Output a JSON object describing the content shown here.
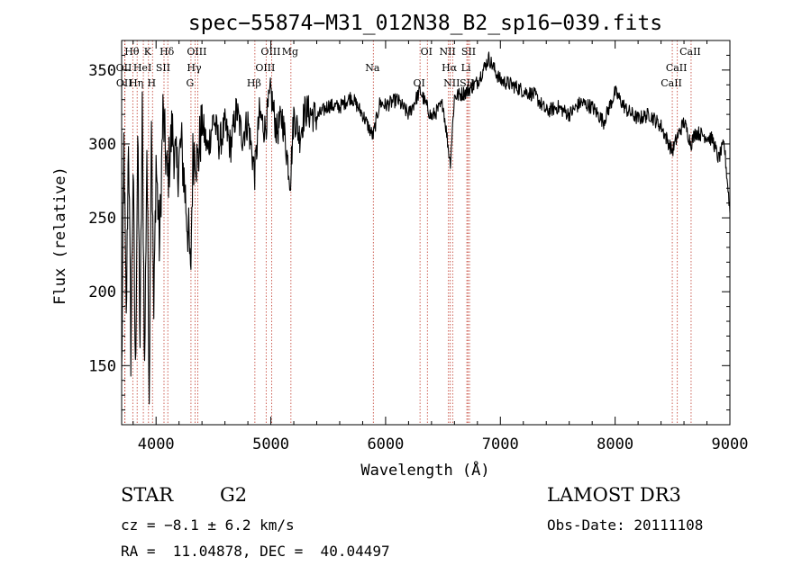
{
  "chart_data": {
    "type": "line",
    "title": "spec−55874−M31_012N38_B2_sp16−039.fits",
    "xlabel": "Wavelength (Å)",
    "ylabel": "Flux (relative)",
    "xlim": [
      3700,
      9000
    ],
    "ylim": [
      110,
      370
    ],
    "x_ticks": [
      4000,
      5000,
      6000,
      7000,
      8000,
      9000
    ],
    "x_tick_labels": [
      "4000",
      "5000",
      "6000",
      "7000",
      "8000",
      "9000"
    ],
    "y_ticks": [
      150,
      200,
      250,
      300,
      350
    ],
    "y_tick_labels": [
      "150",
      "200",
      "250",
      "300",
      "350"
    ],
    "series": [
      {
        "name": "flux",
        "x": [
          3700,
          3720,
          3740,
          3760,
          3780,
          3800,
          3820,
          3840,
          3860,
          3880,
          3900,
          3920,
          3940,
          3960,
          3980,
          4000,
          4030,
          4060,
          4100,
          4140,
          4180,
          4220,
          4260,
          4290,
          4300,
          4310,
          4320,
          4340,
          4360,
          4400,
          4450,
          4500,
          4550,
          4600,
          4650,
          4700,
          4750,
          4800,
          4860,
          4900,
          4950,
          5000,
          5050,
          5100,
          5170,
          5200,
          5250,
          5300,
          5400,
          5500,
          5600,
          5700,
          5800,
          5890,
          5950,
          6000,
          6100,
          6200,
          6300,
          6400,
          6500,
          6563,
          6600,
          6700,
          6800,
          6850,
          6900,
          6950,
          7000,
          7100,
          7200,
          7300,
          7400,
          7500,
          7600,
          7700,
          7800,
          7900,
          8000,
          8100,
          8200,
          8300,
          8400,
          8498,
          8542,
          8600,
          8662,
          8700,
          8800,
          8850,
          8900,
          8950,
          9000
        ],
        "values": [
          140,
          300,
          175,
          310,
          160,
          285,
          140,
          305,
          165,
          320,
          145,
          300,
          135,
          325,
          180,
          290,
          230,
          320,
          275,
          310,
          280,
          300,
          260,
          230,
          205,
          250,
          290,
          300,
          285,
          315,
          295,
          318,
          300,
          312,
          298,
          323,
          305,
          315,
          280,
          320,
          310,
          335,
          308,
          318,
          275,
          320,
          305,
          323,
          318,
          326,
          325,
          332,
          320,
          305,
          328,
          326,
          330,
          320,
          336,
          318,
          327,
          287,
          332,
          335,
          342,
          350,
          358,
          350,
          343,
          340,
          336,
          333,
          322,
          325,
          320,
          328,
          325,
          315,
          335,
          323,
          317,
          320,
          312,
          295,
          305,
          315,
          300,
          308,
          305,
          303,
          290,
          300,
          255
        ]
      }
    ],
    "line_marks": [
      {
        "label": "Hθ",
        "x": 3797
      },
      {
        "label": "OII",
        "x": 3727
      },
      {
        "label": "OII",
        "x": 3729
      },
      {
        "label": "K",
        "x": 3934
      },
      {
        "label": "HeI",
        "x": 3889
      },
      {
        "label": "Hη",
        "x": 3835
      },
      {
        "label": "Hδ",
        "x": 4102
      },
      {
        "label": "SII",
        "x": 4069
      },
      {
        "label": "H",
        "x": 3969
      },
      {
        "label": "OIII",
        "x": 4363
      },
      {
        "label": "Hγ",
        "x": 4340
      },
      {
        "label": "G",
        "x": 4304
      },
      {
        "label": "OIII",
        "x": 5007
      },
      {
        "label": "OIII",
        "x": 4959
      },
      {
        "label": "Hβ",
        "x": 4861
      },
      {
        "label": "Mg",
        "x": 5175
      },
      {
        "label": "Na",
        "x": 5893
      },
      {
        "label": "OI",
        "x": 6300
      },
      {
        "label": "OI",
        "x": 6364
      },
      {
        "label": "Hα",
        "x": 6563
      },
      {
        "label": "SII",
        "x": 6717
      },
      {
        "label": "NII",
        "x": 6548
      },
      {
        "label": "Li",
        "x": 6708
      },
      {
        "label": "NII",
        "x": 6584
      },
      {
        "label": "SII",
        "x": 6731
      },
      {
        "label": "CaII",
        "x": 8542
      },
      {
        "label": "CaII",
        "x": 8498
      },
      {
        "label": "CaII",
        "x": 8662
      }
    ]
  },
  "info": {
    "object_class": "STAR",
    "subclass": "G2",
    "survey": "LAMOST DR3",
    "redshift": "cz = −8.1 ± 6.2 km/s",
    "obs_date": "Obs-Date: 20111108",
    "coords": "RA =  11.04878, DEC =  40.04497"
  }
}
